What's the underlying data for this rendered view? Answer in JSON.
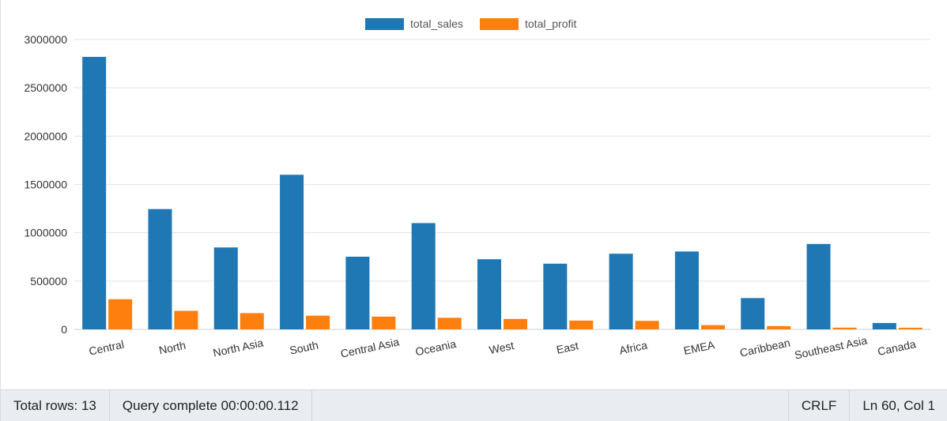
{
  "chart_data": {
    "type": "bar",
    "categories": [
      "Central",
      "North",
      "North Asia",
      "South",
      "Central Asia",
      "Oceania",
      "West",
      "East",
      "Africa",
      "EMEA",
      "Caribbean",
      "Southeast Asia",
      "Canada"
    ],
    "series": [
      {
        "name": "total_sales",
        "color": "#1f77b4",
        "values": [
          2820000,
          1245000,
          848000,
          1600000,
          752000,
          1100000,
          726000,
          680000,
          783000,
          806000,
          324000,
          884000,
          66000
        ]
      },
      {
        "name": "total_profit",
        "color": "#ff7f0e",
        "values": [
          312000,
          192000,
          168000,
          142000,
          132000,
          120000,
          108000,
          91000,
          88000,
          44000,
          34000,
          18000,
          17000
        ]
      }
    ],
    "yticks": [
      "0",
      "500000",
      "1000000",
      "1500000",
      "2000000",
      "2500000",
      "3000000"
    ],
    "ylim": [
      0,
      3000000
    ],
    "grid": true,
    "legend_position": "top-center",
    "xlabel": "",
    "ylabel": ""
  },
  "status_bar": {
    "total_rows": "Total rows: 13",
    "query_status": "Query complete 00:00:00.112",
    "line_ending": "CRLF",
    "cursor_position": "Ln 60, Col 1"
  }
}
